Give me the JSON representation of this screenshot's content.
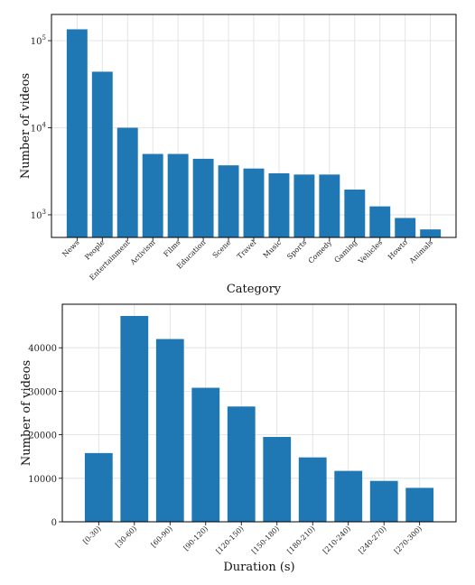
{
  "chart_data": [
    {
      "type": "bar",
      "xlabel": "Category",
      "ylabel": "Number of videos",
      "yscale": "log",
      "ylim": [
        550,
        200000
      ],
      "grid": true,
      "color": "#1f77b4",
      "yticks": [
        {
          "value": 1000,
          "base": "10",
          "exp": "3"
        },
        {
          "value": 10000,
          "base": "10",
          "exp": "4"
        },
        {
          "value": 100000,
          "base": "10",
          "exp": "5"
        }
      ],
      "categories": [
        "News",
        "People",
        "Entertainment",
        "Activism",
        "Films",
        "Education",
        "Scene",
        "Travel",
        "Music",
        "Sports",
        "Comedy",
        "Gaming",
        "Vehicles",
        "Howto",
        "Animals"
      ],
      "values": [
        135000,
        44000,
        10000,
        5000,
        5000,
        4400,
        3700,
        3400,
        3000,
        2900,
        2900,
        1950,
        1250,
        920,
        680
      ]
    },
    {
      "type": "bar",
      "xlabel": "Duration (s)",
      "ylabel": "Number of videos",
      "yscale": "linear",
      "ylim": [
        0,
        50000
      ],
      "grid": true,
      "color": "#1f77b4",
      "yticks": [
        {
          "value": 0,
          "label": "0"
        },
        {
          "value": 10000,
          "label": "10000"
        },
        {
          "value": 20000,
          "label": "20000"
        },
        {
          "value": 30000,
          "label": "30000"
        },
        {
          "value": 40000,
          "label": "40000"
        }
      ],
      "categories": [
        "[0-30)",
        "[30-60)",
        "[60-90)",
        "[90-120)",
        "[120-150)",
        "[150-180)",
        "[180-210)",
        "[210-240)",
        "[240-270)",
        "[270-300)"
      ],
      "values": [
        15800,
        47300,
        42000,
        30800,
        26500,
        19500,
        14800,
        11700,
        9400,
        7800
      ]
    }
  ]
}
